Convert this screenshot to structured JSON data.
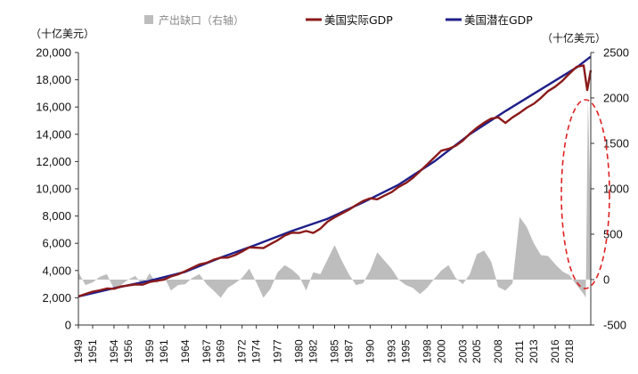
{
  "chart_data": {
    "type": "line",
    "y_left_unit": "（十亿美元）",
    "y_right_unit": "（十亿美元）",
    "ylim_left": [
      0,
      20000
    ],
    "ylim_right": [
      -500,
      2500
    ],
    "yticks_left": [
      "0",
      "2,000",
      "4,000",
      "6,000",
      "8,000",
      "10,000",
      "12,000",
      "14,000",
      "16,000",
      "18,000",
      "20,000"
    ],
    "yticks_right": [
      "-500",
      "0",
      "500",
      "1000",
      "1500",
      "2000",
      "2500"
    ],
    "x_range": [
      1949,
      2021
    ],
    "x_tick_labels": [
      "1949",
      "1951",
      "1954",
      "1956",
      "1959",
      "1961",
      "1964",
      "1967",
      "1969",
      "1972",
      "1974",
      "1977",
      "1980",
      "1982",
      "1985",
      "1987",
      "1990",
      "1993",
      "1995",
      "1998",
      "2000",
      "2003",
      "2005",
      "2008",
      "2011",
      "2013",
      "2016",
      "2018"
    ],
    "legend": [
      {
        "name": "产出缺口（右轴）",
        "color": "#bdbdbd",
        "kind": "area"
      },
      {
        "name": "美国实际GDP",
        "color": "#8b1a1a",
        "kind": "line"
      },
      {
        "name": "美国潜在GDP",
        "color": "#1f1f8a",
        "kind": "line"
      }
    ],
    "series": [
      {
        "name": "美国实际GDP",
        "axis": "left",
        "x": [
          1949,
          1950,
          1951,
          1952,
          1953,
          1954,
          1955,
          1956,
          1957,
          1958,
          1959,
          1960,
          1961,
          1962,
          1963,
          1964,
          1965,
          1966,
          1967,
          1968,
          1969,
          1970,
          1971,
          1972,
          1973,
          1974,
          1975,
          1976,
          1977,
          1978,
          1979,
          1980,
          1981,
          1982,
          1983,
          1984,
          1985,
          1986,
          1987,
          1988,
          1989,
          1990,
          1991,
          1992,
          1993,
          1994,
          1995,
          1996,
          1997,
          1998,
          1999,
          2000,
          2001,
          2002,
          2003,
          2004,
          2005,
          2006,
          2007,
          2008,
          2009,
          2010,
          2011,
          2012,
          2013,
          2014,
          2015,
          2016,
          2017,
          2018,
          2019,
          2020,
          2020.5,
          2021
        ],
        "values": [
          2100,
          2280,
          2450,
          2550,
          2680,
          2660,
          2830,
          2900,
          2980,
          2960,
          3160,
          3250,
          3330,
          3560,
          3720,
          3950,
          4200,
          4450,
          4560,
          4790,
          4940,
          4950,
          5130,
          5400,
          5700,
          5670,
          5650,
          5940,
          6220,
          6570,
          6780,
          6760,
          6900,
          6760,
          7070,
          7580,
          7900,
          8180,
          8460,
          8800,
          9100,
          9300,
          9230,
          9500,
          9750,
          10140,
          10420,
          10800,
          11280,
          11780,
          12290,
          12800,
          12930,
          13150,
          13530,
          14040,
          14480,
          14850,
          15150,
          15240,
          14830,
          15240,
          15570,
          15950,
          16240,
          16670,
          17170,
          17500,
          17920,
          18450,
          18950,
          19050,
          17250,
          18700
        ]
      },
      {
        "name": "美国潜在GDP",
        "axis": "left",
        "x": [
          1949,
          1954,
          1959,
          1964,
          1969,
          1974,
          1979,
          1984,
          1989,
          1994,
          1999,
          2004,
          2009,
          2014,
          2019,
          2021
        ],
        "values": [
          2100,
          2700,
          3250,
          3900,
          4950,
          5900,
          6900,
          7800,
          9000,
          10300,
          12000,
          14000,
          15700,
          17300,
          18900,
          19700
        ]
      },
      {
        "name": "产出缺口（右轴）",
        "axis": "right",
        "x": [
          1949,
          1950,
          1951,
          1952,
          1953,
          1954,
          1955,
          1956,
          1957,
          1958,
          1959,
          1960,
          1961,
          1962,
          1963,
          1964,
          1965,
          1966,
          1967,
          1968,
          1969,
          1970,
          1971,
          1972,
          1973,
          1974,
          1975,
          1976,
          1977,
          1978,
          1979,
          1980,
          1981,
          1982,
          1983,
          1984,
          1985,
          1986,
          1987,
          1988,
          1989,
          1990,
          1991,
          1992,
          1993,
          1994,
          1995,
          1996,
          1997,
          1998,
          1999,
          2000,
          2001,
          2002,
          2003,
          2004,
          2005,
          2006,
          2007,
          2008,
          2009,
          2010,
          2011,
          2012,
          2013,
          2014,
          2015,
          2016,
          2017,
          2018,
          2019,
          2020,
          2020.3,
          2020.6,
          2021
        ],
        "values": [
          80,
          -60,
          -30,
          30,
          60,
          -100,
          -60,
          0,
          40,
          -60,
          70,
          -40,
          40,
          -120,
          -60,
          -50,
          20,
          60,
          -50,
          -120,
          -200,
          -90,
          -40,
          20,
          120,
          -30,
          -200,
          -100,
          80,
          160,
          110,
          40,
          -120,
          80,
          60,
          220,
          380,
          210,
          60,
          -60,
          -40,
          100,
          300,
          210,
          120,
          0,
          -60,
          -90,
          -160,
          -90,
          10,
          100,
          160,
          20,
          -50,
          60,
          280,
          320,
          200,
          -80,
          -120,
          -40,
          690,
          580,
          400,
          270,
          260,
          170,
          90,
          50,
          -60,
          -160,
          -200,
          2000,
          700
        ]
      }
    ]
  }
}
